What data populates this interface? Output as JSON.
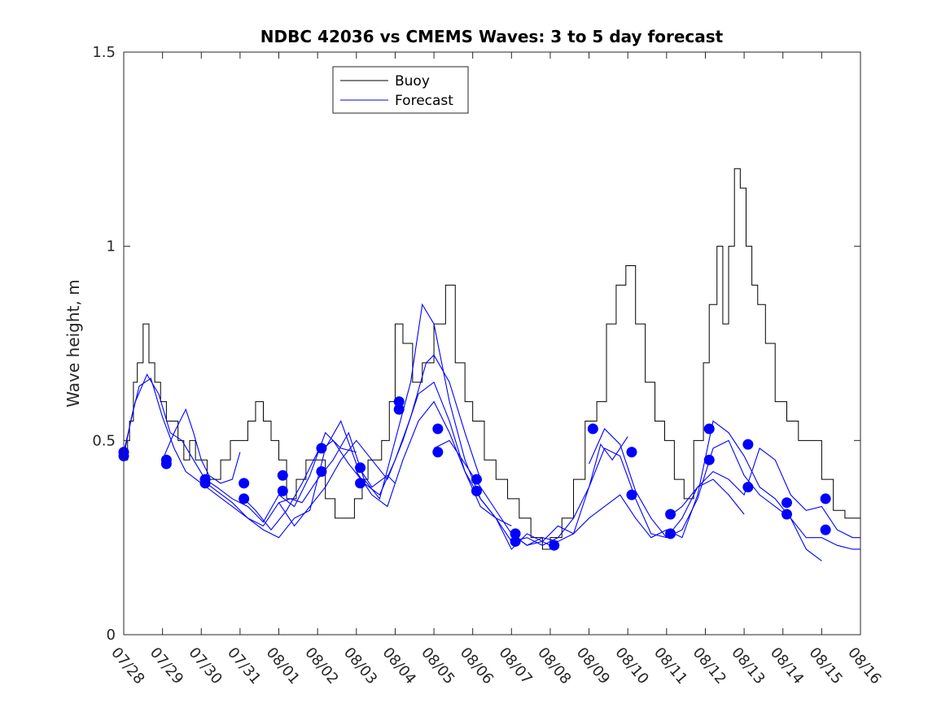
{
  "chart_data": {
    "type": "line",
    "title": "NDBC 42036 vs CMEMS Waves: 3 to 5 day forecast",
    "xlabel": "",
    "ylabel": "Wave height, m",
    "ylim": [
      0,
      1.5
    ],
    "xlim": [
      0,
      19
    ],
    "yticks": [
      0,
      0.5,
      1,
      1.5
    ],
    "ytick_labels": [
      "0",
      "0.5",
      "1",
      "1.5"
    ],
    "xtick_values": [
      0,
      1,
      2,
      3,
      4,
      5,
      6,
      7,
      8,
      9,
      10,
      11,
      12,
      13,
      14,
      15,
      16,
      17,
      18,
      19
    ],
    "xtick_labels": [
      "07/28",
      "07/29",
      "07/30",
      "07/31",
      "08/01",
      "08/02",
      "08/03",
      "08/04",
      "08/05",
      "08/06",
      "08/07",
      "08/08",
      "08/09",
      "08/10",
      "08/11",
      "08/12",
      "08/13",
      "08/14",
      "08/15",
      "08/16"
    ],
    "legend": {
      "position": "top-center",
      "entries": [
        "Buoy",
        "Forecast"
      ]
    },
    "colors": {
      "buoy": "#000000",
      "forecast": "#0000ff",
      "axes": "#262626"
    },
    "series": [
      {
        "name": "Buoy",
        "x": [
          0.0,
          0.1,
          0.15,
          0.25,
          0.35,
          0.5,
          0.65,
          0.8,
          0.95,
          1.1,
          1.25,
          1.4,
          1.55,
          1.7,
          1.85,
          2.0,
          2.15,
          2.3,
          2.5,
          2.75,
          3.0,
          3.2,
          3.4,
          3.6,
          3.8,
          4.0,
          4.2,
          4.45,
          4.7,
          4.95,
          5.2,
          5.45,
          5.7,
          5.95,
          6.15,
          6.3,
          6.45,
          6.65,
          6.85,
          7.0,
          7.2,
          7.45,
          7.7,
          8.0,
          8.3,
          8.55,
          8.8,
          9.0,
          9.3,
          9.6,
          9.9,
          10.2,
          10.5,
          10.8,
          11.0,
          11.3,
          11.6,
          11.9,
          12.2,
          12.45,
          12.7,
          12.95,
          13.2,
          13.45,
          13.7,
          13.95,
          14.2,
          14.45,
          14.7,
          14.95,
          15.1,
          15.3,
          15.45,
          15.6,
          15.75,
          15.9,
          16.05,
          16.2,
          16.35,
          16.55,
          16.8,
          17.1,
          17.4,
          17.7,
          18.0,
          18.3,
          18.6,
          19.0
        ],
        "y": [
          0.45,
          0.5,
          0.55,
          0.65,
          0.7,
          0.8,
          0.7,
          0.65,
          0.6,
          0.55,
          0.55,
          0.5,
          0.45,
          0.5,
          0.45,
          0.45,
          0.4,
          0.4,
          0.45,
          0.5,
          0.5,
          0.55,
          0.6,
          0.55,
          0.5,
          0.45,
          0.35,
          0.4,
          0.45,
          0.45,
          0.35,
          0.3,
          0.3,
          0.35,
          0.4,
          0.45,
          0.45,
          0.5,
          0.6,
          0.8,
          0.75,
          0.65,
          0.7,
          0.8,
          0.9,
          0.7,
          0.6,
          0.55,
          0.45,
          0.4,
          0.35,
          0.3,
          0.25,
          0.22,
          0.25,
          0.3,
          0.4,
          0.55,
          0.6,
          0.8,
          0.9,
          0.95,
          0.8,
          0.65,
          0.55,
          0.5,
          0.4,
          0.35,
          0.5,
          0.7,
          0.85,
          1.0,
          0.8,
          1.0,
          1.2,
          1.15,
          1.0,
          0.9,
          0.85,
          0.75,
          0.6,
          0.55,
          0.5,
          0.5,
          0.4,
          0.32,
          0.3,
          0.27
        ]
      },
      {
        "name": "Forecast",
        "lines": [
          {
            "x": [
              0.0,
              0.2,
              0.4,
              0.7,
              1.0,
              1.3,
              1.6,
              2.0,
              2.4,
              2.8,
              3.2,
              3.6,
              4.0,
              4.3,
              4.6,
              5.0
            ],
            "y": [
              0.46,
              0.56,
              0.64,
              0.66,
              0.56,
              0.48,
              0.42,
              0.39,
              0.36,
              0.33,
              0.3,
              0.28,
              0.34,
              0.35,
              0.34,
              0.4
            ]
          },
          {
            "x": [
              0.0,
              0.3,
              0.6,
              0.9,
              1.2,
              1.5,
              1.8,
              2.1,
              2.4,
              2.8,
              3.2,
              3.6,
              4.0,
              4.4,
              4.8,
              5.2,
              5.6,
              6.0
            ],
            "y": [
              0.47,
              0.6,
              0.67,
              0.62,
              0.52,
              0.5,
              0.45,
              0.4,
              0.38,
              0.35,
              0.33,
              0.29,
              0.36,
              0.33,
              0.41,
              0.52,
              0.48,
              0.47
            ]
          },
          {
            "x": [
              1.0,
              1.3,
              1.6,
              1.8,
              2.0,
              2.2,
              2.5,
              2.8,
              3.0
            ],
            "y": [
              0.45,
              0.52,
              0.58,
              0.52,
              0.45,
              0.41,
              0.39,
              0.4,
              0.47
            ]
          },
          {
            "x": [
              2.0,
              2.4,
              2.8,
              3.2,
              3.6,
              4.0,
              4.4,
              4.8,
              5.2,
              5.6,
              6.0,
              6.4,
              6.8,
              7.0
            ],
            "y": [
              0.4,
              0.37,
              0.34,
              0.3,
              0.27,
              0.25,
              0.3,
              0.32,
              0.48,
              0.55,
              0.44,
              0.38,
              0.41,
              0.39
            ]
          },
          {
            "x": [
              3.0,
              3.4,
              3.8,
              4.2,
              4.6,
              5.0,
              5.4,
              5.8,
              6.2,
              6.6,
              7.0,
              7.4,
              7.8,
              8.0,
              8.4,
              8.8,
              9.2
            ],
            "y": [
              0.36,
              0.32,
              0.27,
              0.32,
              0.39,
              0.47,
              0.5,
              0.44,
              0.39,
              0.36,
              0.45,
              0.56,
              0.7,
              0.72,
              0.65,
              0.52,
              0.4
            ]
          },
          {
            "x": [
              4.0,
              4.4,
              4.8,
              5.2,
              5.6,
              6.0,
              6.4,
              6.8,
              7.2,
              7.6,
              8.0,
              8.4,
              8.8,
              9.2,
              9.6,
              10.0
            ],
            "y": [
              0.34,
              0.28,
              0.33,
              0.38,
              0.45,
              0.5,
              0.45,
              0.4,
              0.5,
              0.62,
              0.65,
              0.55,
              0.42,
              0.33,
              0.3,
              0.28
            ]
          },
          {
            "x": [
              5.0,
              5.4,
              5.8,
              6.2,
              6.6,
              7.0,
              7.4,
              7.7,
              8.0,
              8.4,
              8.8,
              9.2,
              9.6,
              10.0,
              10.4,
              10.8,
              11.0
            ],
            "y": [
              0.4,
              0.45,
              0.52,
              0.4,
              0.35,
              0.5,
              0.65,
              0.85,
              0.8,
              0.6,
              0.45,
              0.35,
              0.3,
              0.22,
              0.26,
              0.24,
              0.23
            ]
          },
          {
            "x": [
              6.0,
              6.4,
              6.8,
              7.2,
              7.6,
              8.0,
              8.4,
              8.8,
              9.2,
              9.6,
              10.0,
              10.4,
              10.8,
              11.2,
              11.6,
              12.0,
              12.3,
              12.6,
              13.0
            ],
            "y": [
              0.42,
              0.36,
              0.33,
              0.45,
              0.55,
              0.6,
              0.52,
              0.42,
              0.35,
              0.3,
              0.24,
              0.25,
              0.23,
              0.25,
              0.3,
              0.38,
              0.49,
              0.45,
              0.51
            ]
          },
          {
            "x": [
              8.0,
              8.4,
              8.8,
              9.2,
              9.6,
              10.0,
              10.4,
              10.8,
              11.2,
              11.6,
              12.0,
              12.4,
              12.8,
              13.2,
              13.6,
              14.0,
              14.4,
              14.8,
              15.2,
              15.6,
              16.0
            ],
            "y": [
              0.48,
              0.5,
              0.44,
              0.38,
              0.32,
              0.26,
              0.23,
              0.24,
              0.28,
              0.26,
              0.38,
              0.48,
              0.46,
              0.35,
              0.26,
              0.25,
              0.3,
              0.38,
              0.4,
              0.36,
              0.31
            ]
          },
          {
            "x": [
              10.0,
              10.4,
              10.8,
              11.2,
              11.6,
              12.0,
              12.4,
              12.8,
              13.2,
              13.6,
              14.0,
              14.4,
              14.8,
              15.2,
              15.6,
              16.0,
              16.4,
              16.8,
              17.2,
              17.6,
              18.0
            ],
            "y": [
              0.26,
              0.23,
              0.25,
              0.24,
              0.26,
              0.3,
              0.33,
              0.36,
              0.3,
              0.25,
              0.27,
              0.25,
              0.36,
              0.55,
              0.52,
              0.46,
              0.38,
              0.35,
              0.3,
              0.22,
              0.19
            ]
          },
          {
            "x": [
              12.0,
              12.4,
              12.8,
              13.2,
              13.6,
              14.0,
              14.4,
              14.8,
              15.2,
              15.6,
              16.0,
              16.4,
              16.8,
              17.2,
              17.6,
              18.0,
              18.4,
              18.8,
              19.0
            ],
            "y": [
              0.44,
              0.53,
              0.49,
              0.37,
              0.3,
              0.25,
              0.27,
              0.35,
              0.48,
              0.5,
              0.41,
              0.36,
              0.33,
              0.3,
              0.25,
              0.25,
              0.23,
              0.22,
              0.22
            ]
          },
          {
            "x": [
              14.0,
              14.4,
              14.8,
              15.2,
              15.6,
              16.0,
              16.4,
              16.8,
              17.2,
              17.6,
              18.0,
              18.4,
              18.8,
              19.0
            ],
            "y": [
              0.3,
              0.33,
              0.38,
              0.42,
              0.4,
              0.36,
              0.48,
              0.45,
              0.36,
              0.32,
              0.33,
              0.27,
              0.25,
              0.25
            ]
          }
        ],
        "markers": {
          "x": [
            0.0,
            0.0,
            1.1,
            1.1,
            2.1,
            2.1,
            3.1,
            3.1,
            4.1,
            4.1,
            5.1,
            5.1,
            6.1,
            6.1,
            7.1,
            7.1,
            8.1,
            8.1,
            9.1,
            9.1,
            10.1,
            10.1,
            11.1,
            12.1,
            13.1,
            13.1,
            14.1,
            14.1,
            15.1,
            15.1,
            16.1,
            16.1,
            17.1,
            17.1,
            18.1,
            18.1
          ],
          "y": [
            0.47,
            0.46,
            0.45,
            0.44,
            0.4,
            0.39,
            0.39,
            0.35,
            0.41,
            0.37,
            0.48,
            0.42,
            0.43,
            0.39,
            0.6,
            0.58,
            0.53,
            0.47,
            0.4,
            0.37,
            0.26,
            0.24,
            0.23,
            0.53,
            0.47,
            0.36,
            0.31,
            0.26,
            0.53,
            0.45,
            0.49,
            0.38,
            0.34,
            0.31,
            0.35,
            0.27
          ]
        }
      }
    ]
  }
}
